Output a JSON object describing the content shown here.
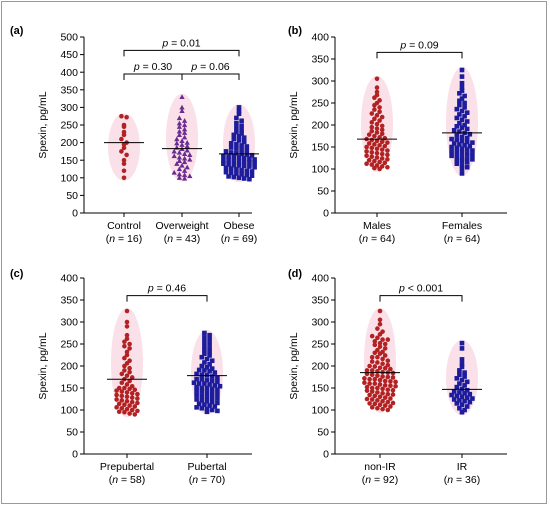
{
  "figure": {
    "colors": {
      "red": "#b22222",
      "purple": "#6a2c91",
      "blue": "#1c1c9c",
      "halo": "#f6c6d6",
      "axis": "#000000"
    }
  },
  "chart_data": [
    {
      "type": "scatter",
      "panel_label": "(a)",
      "ylabel": "Spexin, pg/mL",
      "ylim": [
        0,
        500
      ],
      "yticks": [
        0,
        50,
        100,
        150,
        200,
        250,
        300,
        350,
        400,
        450,
        500
      ],
      "categories": [
        {
          "name": "Control",
          "n_label": "(n = 16)",
          "n_prefix": "(",
          "n_italic": "n",
          "n_suffix": " = 16)",
          "color": "#b22222",
          "marker": "circle",
          "mean": 200,
          "values": [
            275,
            272,
            250,
            245,
            230,
            222,
            210,
            200,
            195,
            185,
            175,
            165,
            150,
            140,
            120,
            100
          ]
        },
        {
          "name": "Overweight",
          "n_label": "(n = 43)",
          "n_prefix": "(",
          "n_italic": "n",
          "n_suffix": " = 43)",
          "color": "#6a2c91",
          "marker": "triangle",
          "mean": 183,
          "values": [
            330,
            300,
            290,
            270,
            262,
            255,
            250,
            245,
            238,
            232,
            228,
            222,
            215,
            210,
            205,
            200,
            198,
            194,
            190,
            186,
            182,
            178,
            175,
            172,
            168,
            165,
            162,
            158,
            155,
            152,
            148,
            145,
            140,
            135,
            130,
            125,
            120,
            115,
            110,
            108,
            105,
            100,
            98
          ]
        },
        {
          "name": "Obese",
          "n_label": "(n = 69)",
          "n_prefix": "(",
          "n_italic": "n",
          "n_suffix": " = 69)",
          "color": "#1c1c9c",
          "marker": "square",
          "mean": 168,
          "values": [
            300,
            290,
            282,
            270,
            262,
            255,
            248,
            242,
            236,
            230,
            226,
            222,
            218,
            214,
            210,
            206,
            202,
            198,
            195,
            192,
            189,
            186,
            183,
            180,
            178,
            175,
            172,
            170,
            168,
            166,
            164,
            162,
            160,
            158,
            156,
            154,
            152,
            150,
            148,
            146,
            144,
            142,
            140,
            138,
            136,
            134,
            132,
            130,
            128,
            126,
            124,
            122,
            120,
            118,
            116,
            114,
            112,
            110,
            108,
            106,
            104,
            102,
            100,
            98,
            96,
            135,
            150,
            160,
            145
          ]
        }
      ],
      "comparisons": [
        {
          "from": 0,
          "to": 2,
          "level": 462,
          "p_prefix": "p",
          "p_suffix": " = 0.01"
        },
        {
          "from": 0,
          "to": 1,
          "level": 395,
          "p_prefix": "p",
          "p_suffix": " = 0.30"
        },
        {
          "from": 1,
          "to": 2,
          "level": 395,
          "p_prefix": "p",
          "p_suffix": " = 0.06"
        }
      ]
    },
    {
      "type": "scatter",
      "panel_label": "(b)",
      "ylabel": "Spexin, pg/mL",
      "ylim": [
        0,
        400
      ],
      "yticks": [
        0,
        50,
        100,
        150,
        200,
        250,
        300,
        350,
        400
      ],
      "categories": [
        {
          "name": "Males",
          "n_prefix": "(",
          "n_italic": "n",
          "n_suffix": " = 64)",
          "color": "#b22222",
          "marker": "circle",
          "mean": 168,
          "values": [
            305,
            285,
            275,
            268,
            262,
            256,
            250,
            245,
            240,
            235,
            230,
            226,
            222,
            218,
            214,
            210,
            206,
            202,
            198,
            195,
            192,
            189,
            186,
            183,
            180,
            178,
            175,
            172,
            170,
            168,
            166,
            164,
            162,
            160,
            158,
            156,
            154,
            152,
            150,
            148,
            146,
            144,
            142,
            140,
            138,
            136,
            134,
            132,
            130,
            128,
            126,
            124,
            122,
            120,
            118,
            116,
            114,
            112,
            110,
            108,
            106,
            104,
            102,
            100
          ]
        },
        {
          "name": "Females",
          "n_prefix": "(",
          "n_italic": "n",
          "n_suffix": " = 64)",
          "color": "#1c1c9c",
          "marker": "square",
          "mean": 182,
          "values": [
            325,
            310,
            295,
            285,
            278,
            272,
            266,
            260,
            255,
            250,
            245,
            240,
            236,
            232,
            228,
            224,
            220,
            216,
            212,
            208,
            204,
            200,
            197,
            194,
            191,
            188,
            185,
            182,
            179,
            176,
            173,
            170,
            168,
            166,
            164,
            162,
            160,
            158,
            156,
            154,
            152,
            150,
            148,
            146,
            144,
            142,
            140,
            138,
            136,
            134,
            132,
            130,
            128,
            126,
            124,
            122,
            120,
            118,
            115,
            112,
            108,
            104,
            100,
            90
          ]
        }
      ],
      "comparisons": [
        {
          "from": 0,
          "to": 1,
          "level": 365,
          "p_prefix": "p",
          "p_suffix": " = 0.09"
        }
      ]
    },
    {
      "type": "scatter",
      "panel_label": "(c)",
      "ylabel": "Spexin, pg/mL",
      "ylim": [
        0,
        400
      ],
      "yticks": [
        0,
        50,
        100,
        150,
        200,
        250,
        300,
        350,
        400
      ],
      "categories": [
        {
          "name": "Prepubertal",
          "n_prefix": "(",
          "n_italic": "n",
          "n_suffix": " = 58)",
          "color": "#b22222",
          "marker": "circle",
          "mean": 170,
          "values": [
            325,
            300,
            290,
            270,
            262,
            255,
            250,
            245,
            240,
            232,
            225,
            218,
            212,
            206,
            200,
            195,
            190,
            186,
            182,
            178,
            174,
            170,
            166,
            162,
            158,
            154,
            150,
            148,
            146,
            144,
            142,
            140,
            138,
            136,
            134,
            132,
            130,
            128,
            126,
            124,
            122,
            120,
            118,
            116,
            114,
            112,
            110,
            108,
            106,
            104,
            102,
            100,
            98,
            96,
            95,
            92,
            90,
            150
          ]
        },
        {
          "name": "Pubertal",
          "n_prefix": "(",
          "n_italic": "n",
          "n_suffix": " = 70)",
          "color": "#1c1c9c",
          "marker": "square",
          "mean": 178,
          "values": [
            275,
            270,
            265,
            260,
            255,
            250,
            245,
            240,
            236,
            232,
            228,
            224,
            220,
            216,
            212,
            208,
            204,
            200,
            197,
            194,
            191,
            188,
            185,
            182,
            179,
            176,
            173,
            170,
            168,
            166,
            164,
            162,
            160,
            158,
            156,
            154,
            152,
            150,
            148,
            146,
            144,
            142,
            140,
            138,
            136,
            134,
            132,
            130,
            128,
            126,
            124,
            122,
            120,
            118,
            116,
            114,
            112,
            110,
            108,
            106,
            104,
            102,
            100,
            98,
            96,
            180,
            190,
            170,
            160,
            150
          ]
        }
      ],
      "comparisons": [
        {
          "from": 0,
          "to": 1,
          "level": 360,
          "p_prefix": "p",
          "p_suffix": " = 0.46"
        }
      ]
    },
    {
      "type": "scatter",
      "panel_label": "(d)",
      "ylabel": "Spexin, pg/mL",
      "ylim": [
        0,
        400
      ],
      "yticks": [
        0,
        50,
        100,
        150,
        200,
        250,
        300,
        350,
        400
      ],
      "categories": [
        {
          "name": "non-IR",
          "n_prefix": "(",
          "n_italic": "n",
          "n_suffix": " = 92)",
          "color": "#b22222",
          "marker": "circle",
          "mean": 185,
          "values": [
            325,
            305,
            295,
            285,
            278,
            272,
            268,
            264,
            260,
            256,
            252,
            248,
            244,
            240,
            236,
            232,
            228,
            224,
            220,
            216,
            212,
            208,
            205,
            202,
            199,
            196,
            193,
            190,
            188,
            186,
            184,
            182,
            180,
            178,
            176,
            174,
            172,
            170,
            168,
            166,
            164,
            162,
            160,
            158,
            156,
            154,
            152,
            150,
            148,
            146,
            144,
            142,
            140,
            138,
            136,
            134,
            132,
            130,
            128,
            126,
            124,
            122,
            120,
            118,
            116,
            114,
            112,
            110,
            108,
            106,
            104,
            102,
            100,
            190,
            200,
            210,
            175,
            165,
            155,
            145,
            135,
            125,
            115,
            230,
            250,
            260,
            220,
            195,
            185,
            170,
            160,
            150
          ]
        },
        {
          "name": "IR",
          "n_prefix": "(",
          "n_italic": "n",
          "n_suffix": " = 36)",
          "color": "#1c1c9c",
          "marker": "square",
          "mean": 147,
          "values": [
            252,
            240,
            215,
            205,
            198,
            190,
            185,
            180,
            176,
            172,
            168,
            164,
            160,
            156,
            152,
            148,
            145,
            142,
            140,
            138,
            136,
            134,
            132,
            130,
            128,
            126,
            124,
            122,
            120,
            118,
            115,
            112,
            108,
            104,
            100,
            95
          ]
        }
      ],
      "comparisons": [
        {
          "from": 0,
          "to": 1,
          "level": 360,
          "p_prefix": "p",
          "p_suffix": " < 0.001"
        }
      ]
    }
  ]
}
